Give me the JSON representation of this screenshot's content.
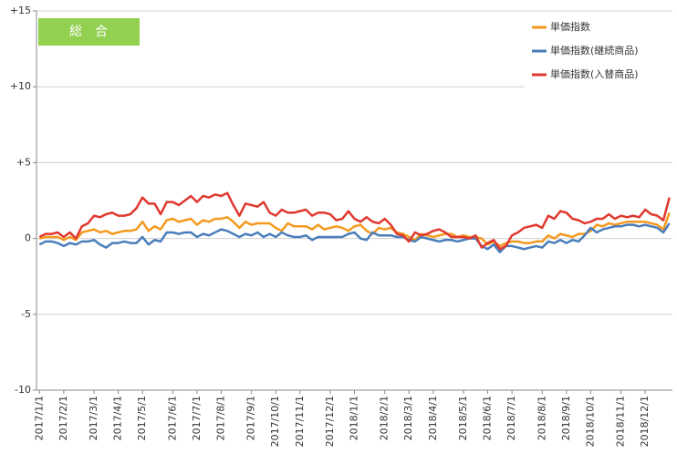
{
  "chart_data": {
    "type": "line",
    "annotation": "総　合",
    "categories": [
      "2017/1/1",
      null,
      null,
      null,
      "2017/2/1",
      null,
      null,
      null,
      null,
      "2017/3/1",
      null,
      null,
      null,
      "2017/4/1",
      null,
      null,
      null,
      "2017/5/1",
      null,
      null,
      null,
      null,
      "2017/6/1",
      null,
      null,
      null,
      "2017/7/1",
      null,
      null,
      null,
      "2017/8/1",
      null,
      null,
      null,
      null,
      "2017/9/1",
      null,
      null,
      null,
      "2017/10/1",
      null,
      null,
      null,
      "2017/11/1",
      null,
      null,
      null,
      null,
      "2017/12/1",
      null,
      null,
      null,
      "2018/1/1",
      null,
      null,
      null,
      null,
      "2018/2/1",
      null,
      null,
      null,
      "2018/3/1",
      null,
      null,
      null,
      "2018/4/1",
      null,
      null,
      null,
      null,
      "2018/5/1",
      null,
      null,
      null,
      "2018/6/1",
      null,
      null,
      null,
      "2018/7/1",
      null,
      null,
      null,
      null,
      "2018/8/1",
      null,
      null,
      null,
      "2018/9/1",
      null,
      null,
      null,
      "2018/10/1",
      null,
      null,
      null,
      null,
      "2018/11/1",
      null,
      null,
      null,
      "2018/12/1",
      null,
      null,
      null,
      null
    ],
    "series": [
      {
        "name": "単価指数",
        "color": "#f39a1e",
        "values": [
          0.0,
          0.1,
          0.1,
          0.1,
          -0.1,
          0.1,
          -0.1,
          0.4,
          0.5,
          0.6,
          0.4,
          0.5,
          0.3,
          0.4,
          0.5,
          0.5,
          0.6,
          1.1,
          0.5,
          0.8,
          0.6,
          1.2,
          1.3,
          1.1,
          1.2,
          1.3,
          0.9,
          1.2,
          1.1,
          1.3,
          1.3,
          1.4,
          1.1,
          0.7,
          1.1,
          0.9,
          1.0,
          1.0,
          1.0,
          0.7,
          0.5,
          1.0,
          0.8,
          0.8,
          0.8,
          0.6,
          0.9,
          0.6,
          0.7,
          0.8,
          0.7,
          0.5,
          0.8,
          0.9,
          0.5,
          0.3,
          0.7,
          0.6,
          0.7,
          0.4,
          0.3,
          0.1,
          -0.1,
          0.3,
          0.2,
          0.1,
          0.2,
          0.3,
          0.3,
          0.1,
          0.2,
          0.1,
          0.1,
          0.0,
          -0.4,
          -0.2,
          -0.5,
          -0.3,
          -0.2,
          -0.2,
          -0.3,
          -0.3,
          -0.2,
          -0.2,
          0.2,
          0.0,
          0.3,
          0.2,
          0.1,
          0.3,
          0.3,
          0.5,
          0.9,
          0.8,
          1.0,
          0.9,
          1.0,
          1.1,
          1.1,
          1.1,
          1.1,
          1.0,
          0.9,
          0.6,
          1.7
        ]
      },
      {
        "name": "単価指数(継続商品)",
        "color": "#4a7ebb",
        "values": [
          -0.4,
          -0.2,
          -0.2,
          -0.3,
          -0.5,
          -0.3,
          -0.4,
          -0.2,
          -0.2,
          -0.1,
          -0.4,
          -0.6,
          -0.3,
          -0.3,
          -0.2,
          -0.3,
          -0.3,
          0.1,
          -0.4,
          -0.1,
          -0.2,
          0.4,
          0.4,
          0.3,
          0.4,
          0.4,
          0.1,
          0.3,
          0.2,
          0.4,
          0.6,
          0.5,
          0.3,
          0.1,
          0.3,
          0.2,
          0.4,
          0.1,
          0.3,
          0.1,
          0.4,
          0.2,
          0.1,
          0.1,
          0.2,
          -0.1,
          0.1,
          0.1,
          0.1,
          0.1,
          0.1,
          0.3,
          0.4,
          0.0,
          -0.1,
          0.4,
          0.2,
          0.2,
          0.2,
          0.1,
          0.1,
          -0.1,
          -0.2,
          0.1,
          0.0,
          -0.1,
          -0.2,
          -0.1,
          -0.1,
          -0.2,
          -0.1,
          0.0,
          0.0,
          -0.5,
          -0.7,
          -0.4,
          -0.9,
          -0.5,
          -0.5,
          -0.6,
          -0.7,
          -0.6,
          -0.5,
          -0.6,
          -0.2,
          -0.3,
          -0.1,
          -0.3,
          -0.1,
          -0.2,
          0.2,
          0.7,
          0.4,
          0.6,
          0.7,
          0.8,
          0.8,
          0.9,
          0.9,
          0.8,
          0.9,
          0.8,
          0.7,
          0.4,
          1.0
        ]
      },
      {
        "name": "単価指数(入替商品)",
        "color": "#e0392f",
        "values": [
          0.1,
          0.3,
          0.3,
          0.4,
          0.1,
          0.4,
          0.0,
          0.8,
          1.0,
          1.5,
          1.4,
          1.6,
          1.7,
          1.5,
          1.5,
          1.6,
          2.0,
          2.7,
          2.3,
          2.3,
          1.6,
          2.4,
          2.4,
          2.2,
          2.5,
          2.8,
          2.4,
          2.8,
          2.7,
          2.9,
          2.8,
          3.0,
          2.2,
          1.5,
          2.3,
          2.2,
          2.1,
          2.4,
          1.7,
          1.5,
          1.9,
          1.7,
          1.7,
          1.8,
          1.9,
          1.5,
          1.7,
          1.7,
          1.6,
          1.2,
          1.3,
          1.8,
          1.3,
          1.1,
          1.4,
          1.1,
          1.0,
          1.3,
          0.9,
          0.3,
          0.2,
          -0.2,
          0.4,
          0.2,
          0.3,
          0.5,
          0.6,
          0.4,
          0.1,
          0.1,
          0.1,
          0.0,
          0.2,
          -0.6,
          -0.3,
          -0.1,
          -0.7,
          -0.5,
          0.2,
          0.4,
          0.7,
          0.8,
          0.9,
          0.7,
          1.5,
          1.3,
          1.8,
          1.7,
          1.3,
          1.2,
          1.0,
          1.1,
          1.3,
          1.3,
          1.6,
          1.3,
          1.5,
          1.4,
          1.5,
          1.4,
          1.9,
          1.6,
          1.5,
          1.2,
          2.7
        ]
      }
    ],
    "ylim": [
      -10,
      15
    ],
    "yticks": [
      -10,
      -5,
      0,
      {
        "value": 5,
        "label": "+5"
      },
      {
        "value": 10,
        "label": "+10"
      },
      {
        "value": 15,
        "label": "+15"
      }
    ],
    "grid": true,
    "legend": "upper right"
  }
}
